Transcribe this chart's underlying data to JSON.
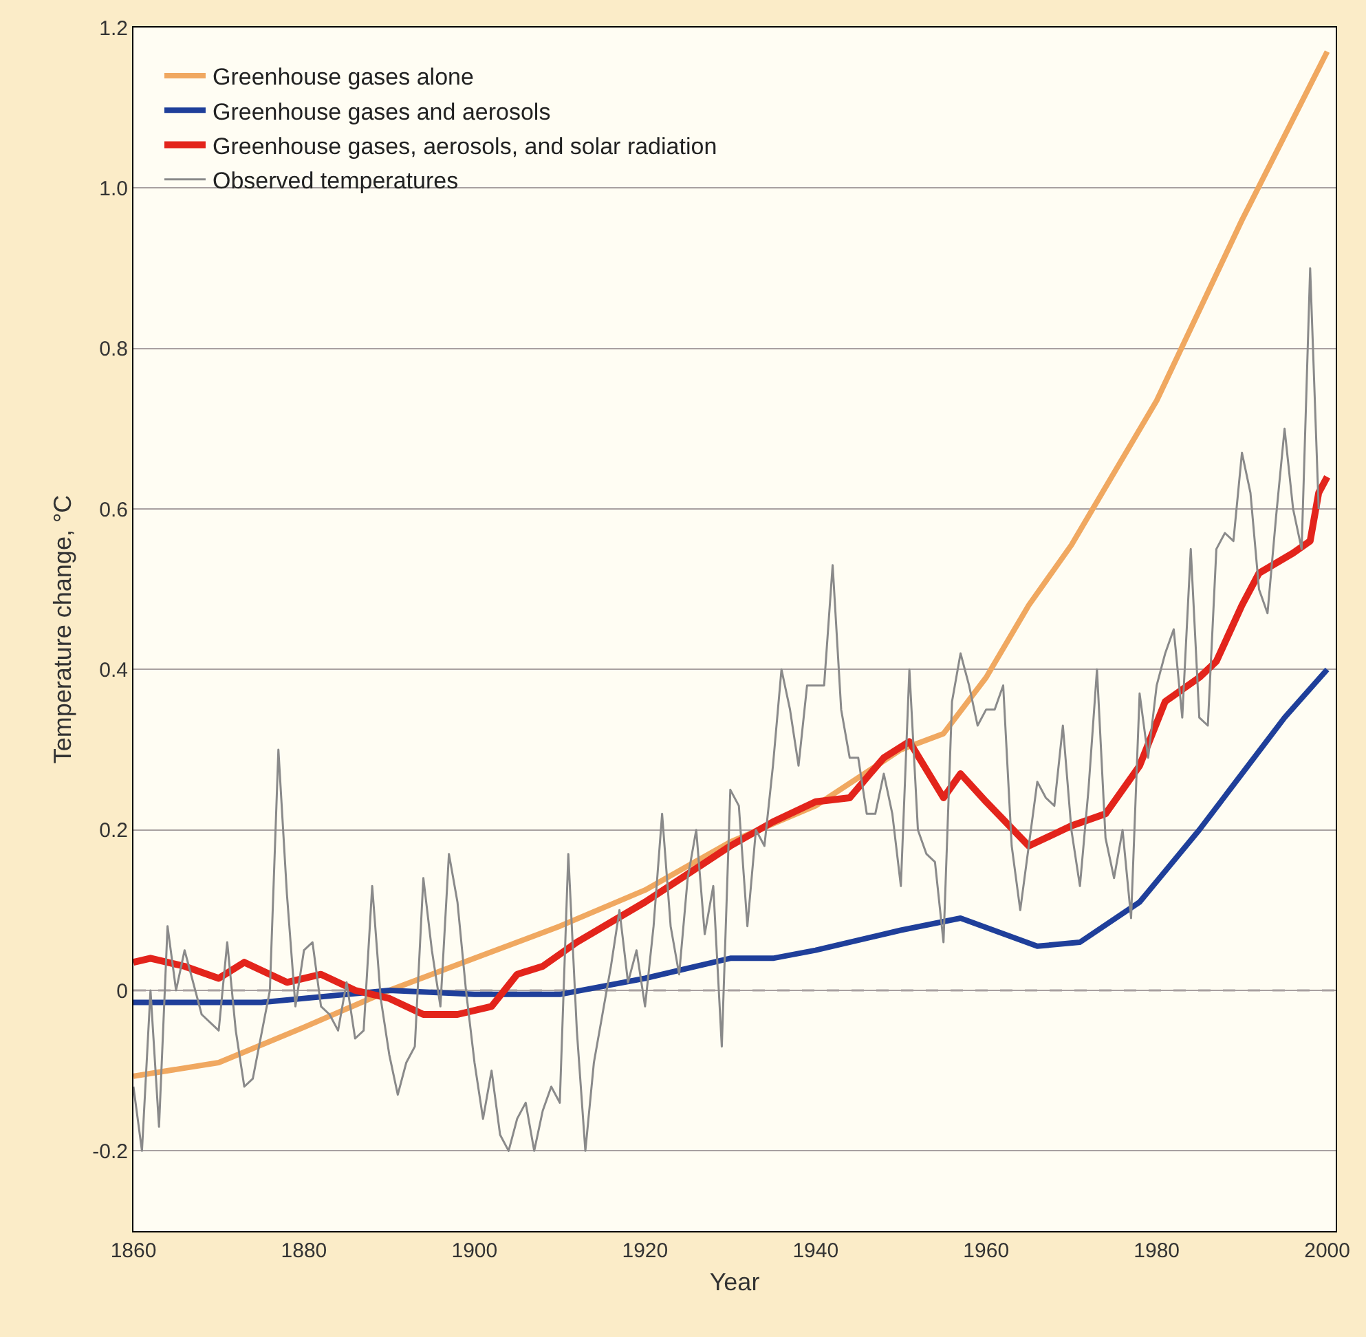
{
  "chart_data": {
    "type": "line",
    "xlabel": "Year",
    "ylabel": "Temperature change, °C",
    "xlim": [
      1860,
      2001
    ],
    "xticks": [
      1860,
      1880,
      1900,
      1920,
      1940,
      1960,
      1980,
      2000
    ],
    "ylim": [
      -0.3,
      1.2
    ],
    "yticks": [
      -0.2,
      0,
      0.2,
      0.4,
      0.6,
      0.8,
      {
        "value": 1.0,
        "label": "1.0"
      },
      1.2
    ],
    "grid": "y",
    "legend": "top left",
    "marker": "none",
    "line_style": "solid",
    "ref_lines": [
      {
        "axis": "y",
        "value": 0,
        "color": "#a8a0a0",
        "line_style": "dashed"
      }
    ],
    "series": [
      {
        "name": "Greenhouse gases alone",
        "color": "#f0a860",
        "x": [
          1860,
          1870,
          1880,
          1890,
          1900,
          1910,
          1920,
          1930,
          1940,
          1950,
          1955,
          1960,
          1965,
          1970,
          1980,
          1990,
          2000
        ],
        "values": [
          -0.107,
          -0.09,
          -0.046,
          0.0,
          0.04,
          0.08,
          0.125,
          0.185,
          0.23,
          0.3,
          0.32,
          0.39,
          0.48,
          0.555,
          0.735,
          0.96,
          1.17
        ]
      },
      {
        "name": "Greenhouse gases and aerosols",
        "color": "#1f3f9a",
        "x": [
          1860,
          1875,
          1890,
          1900,
          1910,
          1920,
          1930,
          1935,
          1940,
          1950,
          1957,
          1966,
          1971,
          1978,
          1985,
          1990,
          1995,
          2000
        ],
        "values": [
          -0.015,
          -0.015,
          0.0,
          -0.005,
          -0.005,
          0.015,
          0.04,
          0.04,
          0.05,
          0.075,
          0.09,
          0.055,
          0.06,
          0.11,
          0.2,
          0.27,
          0.34,
          0.4
        ]
      },
      {
        "name": "Greenhouse gases, aerosols, and solar radiation",
        "color": "#e3241b",
        "x": [
          1860,
          1862,
          1866,
          1870,
          1873,
          1878,
          1882,
          1886,
          1890,
          1894,
          1898,
          1902,
          1905,
          1908,
          1912,
          1920,
          1930,
          1935,
          1940,
          1944,
          1948,
          1951,
          1955,
          1957,
          1960,
          1965,
          1970,
          1974,
          1978,
          1981,
          1985,
          1987,
          1990,
          1992,
          1996,
          1998,
          1999,
          2000
        ],
        "values": [
          0.035,
          0.04,
          0.03,
          0.015,
          0.035,
          0.01,
          0.02,
          0.0,
          -0.01,
          -0.03,
          -0.03,
          -0.02,
          0.02,
          0.03,
          0.06,
          0.11,
          0.18,
          0.21,
          0.235,
          0.24,
          0.29,
          0.31,
          0.24,
          0.27,
          0.235,
          0.18,
          0.205,
          0.22,
          0.28,
          0.36,
          0.39,
          0.41,
          0.48,
          0.52,
          0.545,
          0.56,
          0.62,
          0.64
        ]
      },
      {
        "name": "Observed temperatures",
        "color": "#8a8a8a",
        "x": [
          1860,
          1861,
          1862,
          1863,
          1864,
          1865,
          1866,
          1868,
          1870,
          1871,
          1872,
          1873,
          1874,
          1876,
          1877,
          1878,
          1879,
          1880,
          1881,
          1882,
          1883,
          1884,
          1885,
          1886,
          1887,
          1888,
          1889,
          1890,
          1891,
          1892,
          1893,
          1894,
          1895,
          1896,
          1897,
          1898,
          1899,
          1900,
          1901,
          1902,
          1903,
          1904,
          1905,
          1906,
          1907,
          1908,
          1909,
          1910,
          1911,
          1912,
          1913,
          1914,
          1915,
          1916,
          1917,
          1918,
          1919,
          1920,
          1921,
          1922,
          1923,
          1924,
          1925,
          1926,
          1927,
          1928,
          1929,
          1930,
          1931,
          1932,
          1933,
          1934,
          1935,
          1936,
          1937,
          1938,
          1939,
          1940,
          1941,
          1942,
          1943,
          1944,
          1945,
          1946,
          1947,
          1948,
          1949,
          1950,
          1951,
          1952,
          1953,
          1954,
          1955,
          1956,
          1957,
          1958,
          1959,
          1960,
          1961,
          1962,
          1963,
          1964,
          1965,
          1966,
          1967,
          1968,
          1969,
          1970,
          1971,
          1972,
          1973,
          1974,
          1975,
          1976,
          1977,
          1978,
          1979,
          1980,
          1981,
          1982,
          1983,
          1984,
          1985,
          1986,
          1987,
          1988,
          1989,
          1990,
          1991,
          1992,
          1993,
          1994,
          1995,
          1996,
          1997,
          1998,
          1999
        ],
        "values": [
          -0.12,
          -0.2,
          0.0,
          -0.17,
          0.08,
          0.0,
          0.05,
          -0.03,
          -0.05,
          0.06,
          -0.05,
          -0.12,
          -0.11,
          0.0,
          0.3,
          0.12,
          -0.02,
          0.05,
          0.06,
          -0.02,
          -0.03,
          -0.05,
          0.01,
          -0.06,
          -0.05,
          0.13,
          -0.01,
          -0.08,
          -0.13,
          -0.09,
          -0.07,
          0.14,
          0.05,
          -0.02,
          0.17,
          0.11,
          0.0,
          -0.09,
          -0.16,
          -0.1,
          -0.18,
          -0.2,
          -0.16,
          -0.14,
          -0.2,
          -0.15,
          -0.12,
          -0.14,
          0.17,
          -0.05,
          -0.2,
          -0.09,
          -0.03,
          0.03,
          0.1,
          0.01,
          0.05,
          -0.02,
          0.08,
          0.22,
          0.08,
          0.02,
          0.14,
          0.2,
          0.07,
          0.13,
          -0.07,
          0.25,
          0.23,
          0.08,
          0.2,
          0.18,
          0.28,
          0.4,
          0.35,
          0.28,
          0.38,
          0.38,
          0.38,
          0.53,
          0.35,
          0.29,
          0.29,
          0.22,
          0.22,
          0.27,
          0.22,
          0.13,
          0.4,
          0.2,
          0.17,
          0.16,
          0.06,
          0.36,
          0.42,
          0.38,
          0.33,
          0.35,
          0.35,
          0.38,
          0.18,
          0.1,
          0.18,
          0.26,
          0.24,
          0.23,
          0.33,
          0.2,
          0.13,
          0.25,
          0.4,
          0.19,
          0.14,
          0.2,
          0.09,
          0.37,
          0.29,
          0.38,
          0.42,
          0.45,
          0.34,
          0.55,
          0.34,
          0.33,
          0.55,
          0.57,
          0.56,
          0.67,
          0.62,
          0.5,
          0.47,
          0.59,
          0.7,
          0.6,
          0.55,
          0.9,
          0.6
        ]
      }
    ]
  }
}
